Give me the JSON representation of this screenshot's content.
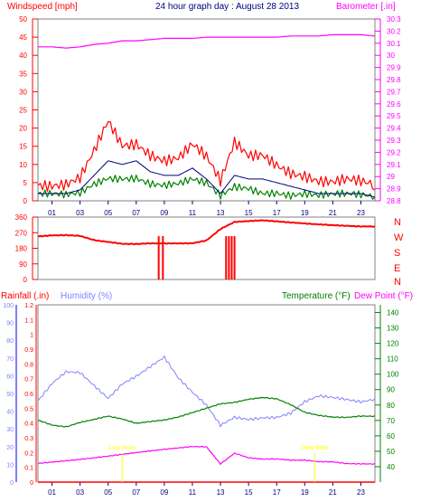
{
  "header": {
    "left": "Windspeed [mph]",
    "center": "24 hour graph day : August 28 2013",
    "right": "Barometer [.in]"
  },
  "mid_header": {
    "left_a": "Rainfall (.in)",
    "left_b": "Humidity (%)",
    "right_a": "Temperature (°F)",
    "right_b": "Dew Point (°F)"
  },
  "compass": [
    "N",
    "W",
    "S",
    "E",
    "N"
  ],
  "colors": {
    "wind": "#ff0000",
    "gust": "#ff0000",
    "avg": "#000080",
    "low": "#008000",
    "baro": "#ff00ff",
    "dir": "#ff0000",
    "rain": "#ff0000",
    "humidity": "#8080ff",
    "temp": "#008000",
    "dew": "#ff00ff",
    "marker": "#ffff00",
    "axis_wind": "#ff0000",
    "axis_baro": "#ff00ff",
    "axis_humidity": "#8080ff",
    "axis_temp": "#008000",
    "title": "#000080"
  },
  "x_ticks": [
    "01",
    "03",
    "05",
    "07",
    "09",
    "11",
    "13",
    "15",
    "17",
    "19",
    "21",
    "23"
  ],
  "chart_data": [
    {
      "type": "line",
      "name": "wind_baro",
      "title": "24 hour graph day : August 28 2013",
      "ylabel_left": "Windspeed [mph]",
      "ylabel_right": "Barometer [.in]",
      "ylim_left": [
        0,
        50
      ],
      "yticks_left": [
        "0",
        "5",
        "10",
        "15",
        "20",
        "25",
        "30",
        "35",
        "40",
        "45",
        "50"
      ],
      "ylim_right": [
        28.8,
        30.3
      ],
      "yticks_right": [
        "28.8",
        "28.9",
        "29",
        "29.1",
        "29.2",
        "29.3",
        "29.4",
        "29.5",
        "29.6",
        "29.7",
        "29.8",
        "29.9",
        "30",
        "30.1",
        "30.2",
        "30.3"
      ],
      "x_hours": [
        0,
        1,
        2,
        3,
        4,
        5,
        6,
        7,
        8,
        9,
        10,
        11,
        12,
        13,
        14,
        15,
        16,
        17,
        18,
        19,
        20,
        21,
        22,
        23,
        24
      ],
      "series": [
        {
          "values": [
            4,
            3,
            3,
            5,
            13,
            22,
            16,
            17,
            14,
            12,
            12,
            15,
            11,
            4,
            15,
            12,
            13,
            11,
            9,
            8,
            6,
            5,
            5,
            4,
            3
          ]
        },
        {
          "values": [
            2,
            2,
            2,
            3,
            7,
            11,
            10,
            11,
            8,
            7,
            7,
            9,
            6,
            2,
            7,
            6,
            6,
            5,
            4,
            3,
            2,
            2,
            2,
            2,
            1
          ]
        },
        {
          "values": [
            1,
            1,
            1,
            2,
            5,
            7,
            7,
            7,
            5,
            4,
            4,
            5,
            4,
            1,
            4,
            4,
            3,
            3,
            2,
            2,
            1,
            1,
            1,
            1,
            1
          ]
        },
        {
          "values": [
            30.07,
            30.07,
            30.06,
            30.07,
            30.09,
            30.1,
            30.12,
            30.12,
            30.13,
            30.14,
            30.14,
            30.14,
            30.15,
            30.15,
            30.15,
            30.15,
            30.15,
            30.15,
            30.16,
            30.16,
            30.16,
            30.17,
            30.17,
            30.17,
            30.16
          ]
        }
      ]
    },
    {
      "type": "line",
      "name": "direction",
      "yticks": [
        "0",
        "90",
        "180",
        "270",
        "360"
      ],
      "ylim": [
        0,
        360
      ],
      "x_hours": [
        0,
        1,
        2,
        3,
        4,
        5,
        6,
        7,
        8,
        9,
        10,
        11,
        12,
        13,
        14,
        15,
        16,
        17,
        18,
        19,
        20,
        21,
        22,
        23,
        24
      ],
      "series": [
        {
          "values": [
            250,
            255,
            255,
            250,
            225,
            215,
            205,
            205,
            210,
            210,
            210,
            210,
            225,
            290,
            330,
            335,
            340,
            335,
            330,
            325,
            320,
            315,
            310,
            305,
            305
          ]
        }
      ],
      "drops_to_zero_hours": [
        8.6,
        8.9,
        13.4,
        13.6,
        13.8,
        14.0
      ]
    },
    {
      "type": "line",
      "name": "rain_humidity_temp",
      "ylabel_left_a": "Rainfall (.in)",
      "ylabel_left_b": "Humidity (%)",
      "ylabel_right_a": "Temperature (°F)",
      "ylabel_right_b": "Dew Point (°F)",
      "ylim_rain": [
        0,
        1.2
      ],
      "yticks_rain": [
        "0",
        "0.1",
        "0.2",
        "0.3",
        "0.4",
        "0.5",
        "0.6",
        "0.7",
        "0.8",
        "0.9",
        "1",
        "1.1",
        "1.2"
      ],
      "ylim_humidity": [
        0,
        100
      ],
      "yticks_humidity": [
        "0",
        "10",
        "20",
        "30",
        "40",
        "50",
        "60",
        "70",
        "80",
        "90",
        "100"
      ],
      "ylim_temp": [
        30,
        145
      ],
      "yticks_temp": [
        "40",
        "50",
        "60",
        "70",
        "80",
        "90",
        "100",
        "110",
        "120",
        "130",
        "140"
      ],
      "x_hours": [
        0,
        1,
        2,
        3,
        4,
        5,
        6,
        7,
        8,
        9,
        10,
        11,
        12,
        13,
        14,
        15,
        16,
        17,
        18,
        19,
        20,
        21,
        22,
        23,
        24
      ],
      "series": [
        {
          "values": [
            45,
            55,
            62,
            62,
            55,
            48,
            56,
            60,
            65,
            70,
            58,
            50,
            43,
            32,
            37,
            36,
            37,
            37,
            39,
            45,
            48,
            47,
            46,
            45,
            47
          ]
        },
        {
          "values": [
            70,
            67,
            66,
            69,
            71,
            73,
            71,
            68,
            69,
            70,
            72,
            75,
            78,
            81,
            82,
            84,
            85,
            84,
            80,
            75,
            73,
            72,
            72,
            73,
            73
          ]
        },
        {
          "values": [
            42,
            43,
            44,
            45,
            46,
            47,
            48,
            49,
            50,
            51,
            52,
            53,
            53,
            42,
            49,
            46,
            45,
            45,
            44,
            44,
            43,
            43,
            42,
            42,
            42
          ]
        }
      ],
      "rain_values": [
        0,
        0,
        0,
        0,
        0,
        0,
        0,
        0,
        0,
        0,
        0,
        0,
        0,
        0,
        0,
        0,
        0,
        0,
        0,
        0,
        0,
        0,
        0,
        0,
        0
      ],
      "markers": [
        {
          "hour": 6,
          "label": "Low Hum"
        },
        {
          "hour": 19.7,
          "label": "Dew Max"
        }
      ]
    }
  ]
}
